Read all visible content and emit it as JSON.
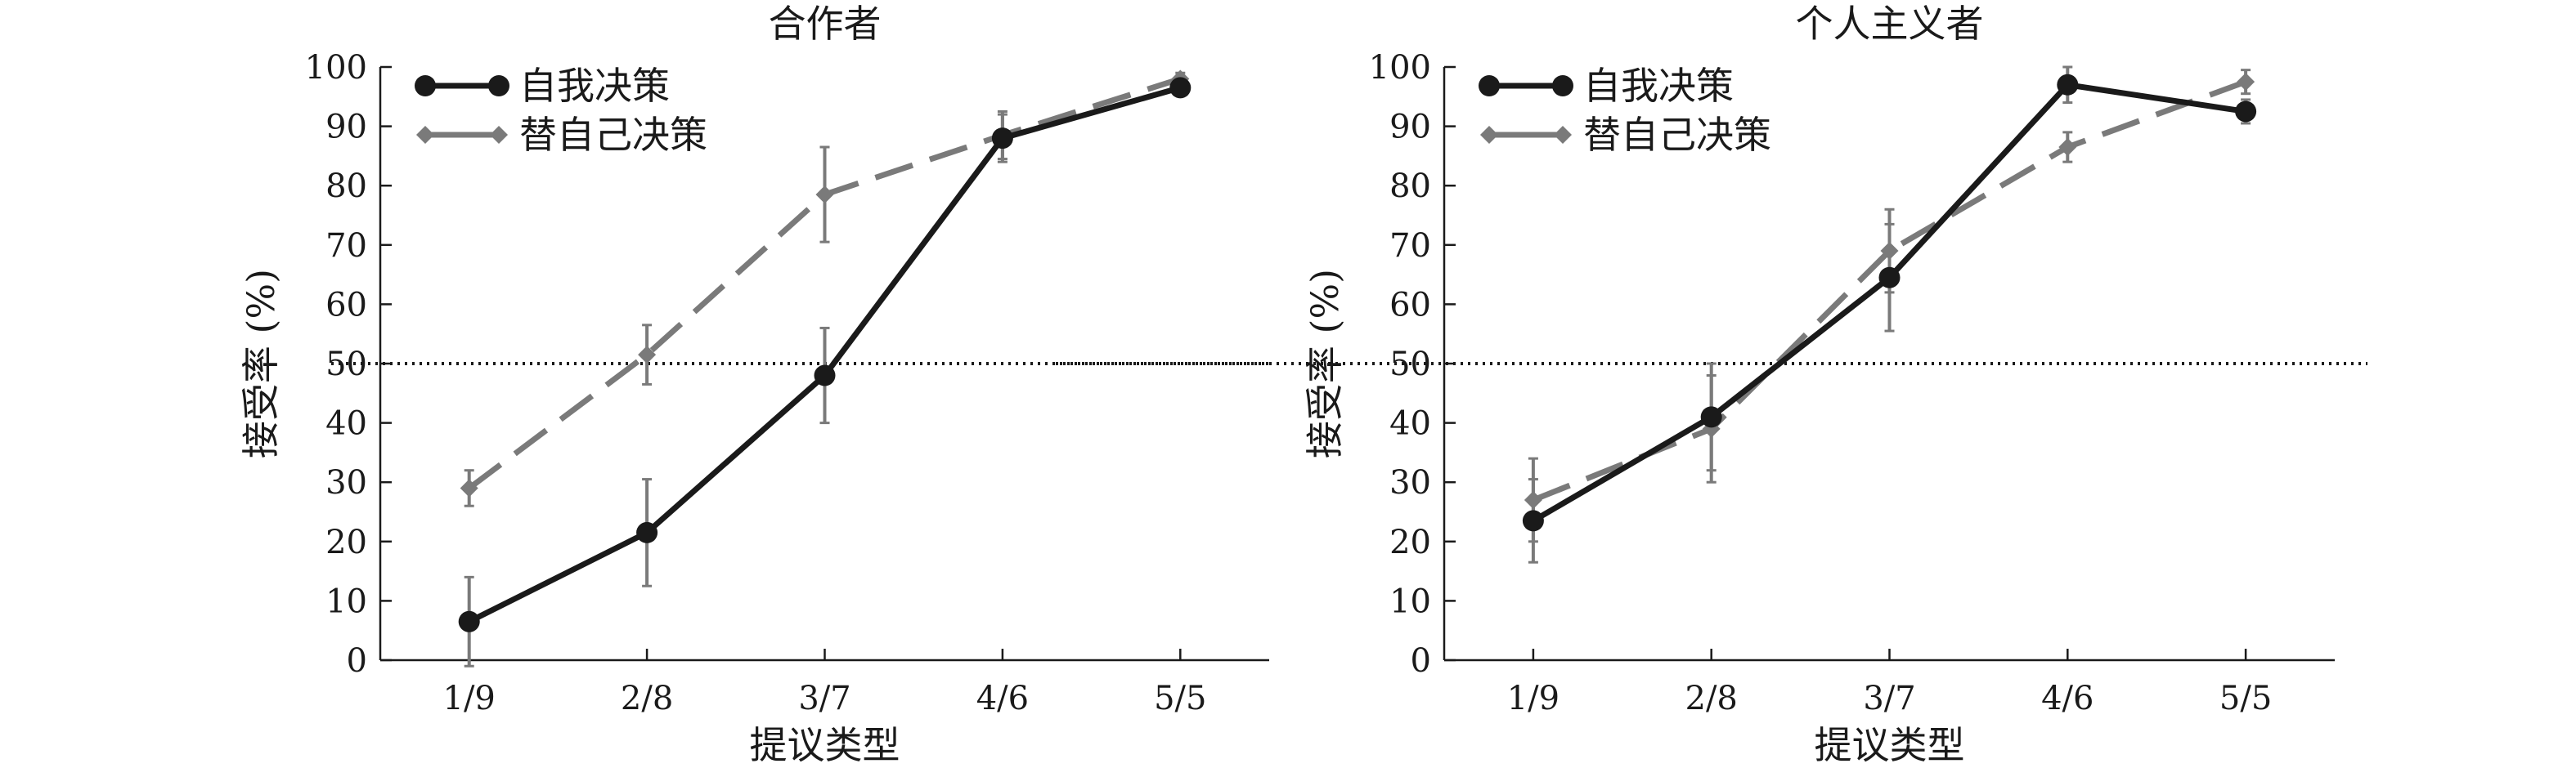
{
  "chart_data": [
    {
      "type": "line",
      "title": "合作者",
      "xlabel": "提议类型",
      "ylabel": "接受率 (%)",
      "categories": [
        "1/9",
        "2/8",
        "3/7",
        "4/6",
        "5/5"
      ],
      "ylim": [
        0,
        100
      ],
      "yticks": [
        "0",
        "10",
        "20",
        "30",
        "40",
        "50",
        "60",
        "70",
        "80",
        "90",
        "100"
      ],
      "reference_line": 50,
      "legend_position": "top-left",
      "series": [
        {
          "name": "自我决策",
          "color": "#1a1a1a",
          "marker": "circle",
          "style": "solid",
          "values": [
            6.5,
            21.5,
            48,
            88,
            96.5
          ],
          "errors": [
            7.5,
            9,
            8,
            4,
            1
          ]
        },
        {
          "name": "替自己决策",
          "color": "#7a7a7a",
          "marker": "diamond",
          "style": "dashed",
          "values": [
            29,
            51.5,
            78.5,
            88.5,
            98
          ],
          "errors": [
            3,
            5,
            8,
            4,
            1
          ]
        }
      ]
    },
    {
      "type": "line",
      "title": "个人主义者",
      "xlabel": "提议类型",
      "ylabel": "接受率 (%)",
      "categories": [
        "1/9",
        "2/8",
        "3/7",
        "4/6",
        "5/5"
      ],
      "ylim": [
        0,
        100
      ],
      "yticks": [
        "0",
        "10",
        "20",
        "30",
        "40",
        "50",
        "60",
        "70",
        "80",
        "90",
        "100"
      ],
      "reference_line": 50,
      "legend_position": "top-left",
      "series": [
        {
          "name": "自我决策",
          "color": "#1a1a1a",
          "marker": "circle",
          "style": "solid",
          "values": [
            23.5,
            41,
            64.5,
            97,
            92.5
          ],
          "errors": [
            7,
            9,
            9,
            3,
            2
          ]
        },
        {
          "name": "替自己决策",
          "color": "#7a7a7a",
          "marker": "diamond",
          "style": "dashed",
          "values": [
            27,
            39,
            69,
            86.5,
            97.5
          ],
          "errors": [
            7,
            9,
            7,
            2.5,
            2
          ]
        }
      ]
    }
  ]
}
